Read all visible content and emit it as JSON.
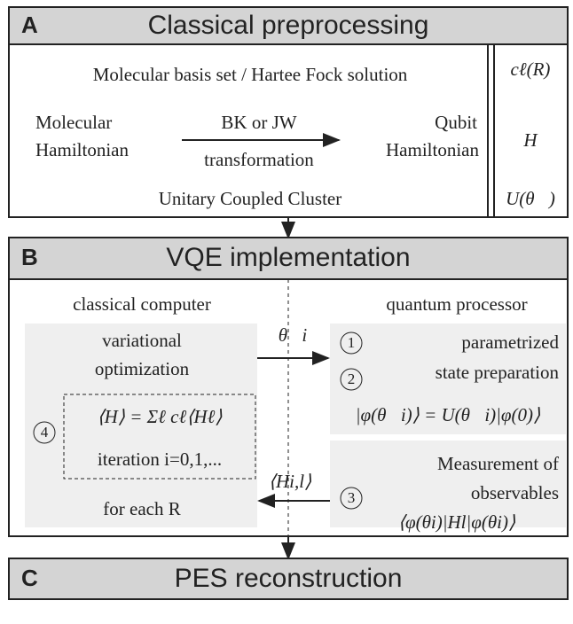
{
  "sections": [
    {
      "letter": "A",
      "title": "Classical preprocessing"
    },
    {
      "letter": "B",
      "title": "VQE implementation"
    },
    {
      "letter": "C",
      "title": "PES reconstruction"
    }
  ],
  "preprocessing": {
    "basis": "Molecular basis set / Hartee Fock solution",
    "input": [
      "Molecular",
      "Hamiltonian"
    ],
    "arrow_top": "BK or JW",
    "arrow_bottom": "transformation",
    "output": [
      "Qubit",
      "Hamiltonian"
    ],
    "ansatz": "Unitary Coupled Cluster",
    "side": [
      "cℓ(R)",
      "H",
      "U(θ⃗)"
    ]
  },
  "vqe": {
    "classical_label": "classical computer",
    "quantum_label": "quantum processor",
    "optimization": [
      "variational",
      "optimization"
    ],
    "energy": "⟨H⟩ = Σℓ cℓ⟨Hℓ⟩",
    "iteration": "iteration i=0,1,...",
    "for_each": "for each R",
    "step4": "4",
    "parameter": "θ⃗i",
    "step1": "1",
    "step2": "2",
    "preparation": [
      "parametrized",
      "state preparation"
    ],
    "state": "|φ(θ⃗i)⟩ = U(θ⃗i)|φ(0)⟩",
    "measurement": [
      "Measurement of",
      "observables"
    ],
    "step3": "3",
    "expectation": "⟨φ(θi)|Hl|φ(θi)⟩",
    "feedback": "⟨Hi,l⟩"
  }
}
